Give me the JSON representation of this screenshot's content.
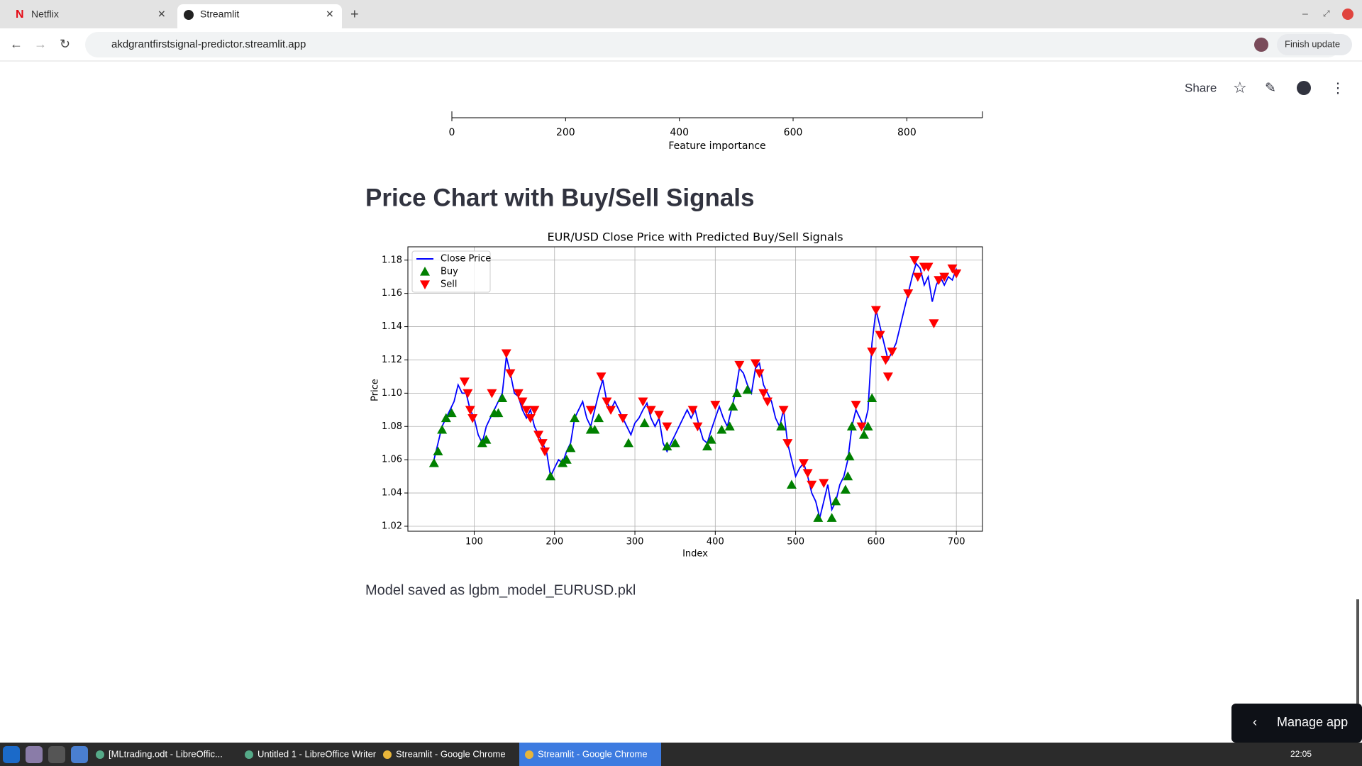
{
  "browser": {
    "tabs": [
      "Netflix",
      "Streamlit"
    ],
    "url": "akdgrantfirstsignal-predictor.streamlit.app",
    "update_button": "Finish update"
  },
  "app": {
    "share": "Share",
    "heading": "Price Chart with Buy/Sell Signals",
    "message": "Model saved as lgbm_model_EURUSD.pkl",
    "manage": "Manage app"
  },
  "feature_axis": {
    "xlabel": "Feature importance",
    "xlim": [
      0,
      933
    ],
    "xticks": [
      0,
      200,
      400,
      600,
      800
    ]
  },
  "chart_data": {
    "type": "line",
    "title": "EUR/USD Close Price with Predicted Buy/Sell Signals",
    "xlabel": "Index",
    "ylabel": "Price",
    "xlim": [
      17.5,
      732.5
    ],
    "ylim": [
      1.017,
      1.188
    ],
    "xticks": [
      100,
      200,
      300,
      400,
      500,
      600,
      700
    ],
    "yticks": [
      1.02,
      1.04,
      1.06,
      1.08,
      {
        "value": 1.1,
        "label": "1.10"
      },
      1.12,
      1.14,
      1.16,
      1.18
    ],
    "grid": true,
    "legend": "upper left",
    "series": [
      {
        "name": "Close Price",
        "type": "line",
        "color": "#0000ff",
        "x": [
          50,
          55,
          60,
          65,
          70,
          75,
          80,
          85,
          90,
          95,
          100,
          105,
          110,
          115,
          120,
          125,
          130,
          135,
          140,
          145,
          150,
          155,
          160,
          165,
          170,
          175,
          180,
          185,
          190,
          195,
          200,
          205,
          210,
          215,
          220,
          225,
          230,
          235,
          240,
          245,
          250,
          255,
          260,
          265,
          270,
          275,
          280,
          285,
          290,
          295,
          300,
          305,
          310,
          315,
          320,
          325,
          330,
          335,
          340,
          345,
          350,
          355,
          360,
          365,
          370,
          375,
          380,
          385,
          390,
          395,
          400,
          405,
          410,
          415,
          420,
          425,
          430,
          435,
          440,
          445,
          450,
          455,
          460,
          465,
          470,
          475,
          480,
          485,
          490,
          495,
          500,
          505,
          510,
          515,
          520,
          525,
          530,
          535,
          540,
          545,
          550,
          555,
          560,
          565,
          570,
          575,
          580,
          585,
          590,
          595,
          600,
          605,
          610,
          615,
          620,
          625,
          630,
          635,
          640,
          645,
          650,
          655,
          660,
          665,
          670,
          675,
          680,
          685,
          690,
          695,
          700
        ],
        "values": [
          1.06,
          1.07,
          1.08,
          1.085,
          1.09,
          1.095,
          1.105,
          1.1,
          1.1,
          1.09,
          1.085,
          1.075,
          1.07,
          1.08,
          1.085,
          1.09,
          1.095,
          1.1,
          1.122,
          1.112,
          1.1,
          1.098,
          1.09,
          1.085,
          1.09,
          1.08,
          1.075,
          1.07,
          1.065,
          1.05,
          1.055,
          1.06,
          1.058,
          1.065,
          1.07,
          1.085,
          1.09,
          1.095,
          1.085,
          1.08,
          1.09,
          1.1,
          1.108,
          1.095,
          1.09,
          1.095,
          1.09,
          1.085,
          1.08,
          1.075,
          1.082,
          1.085,
          1.09,
          1.094,
          1.085,
          1.08,
          1.085,
          1.07,
          1.065,
          1.07,
          1.075,
          1.08,
          1.085,
          1.09,
          1.085,
          1.09,
          1.08,
          1.072,
          1.07,
          1.078,
          1.085,
          1.092,
          1.085,
          1.08,
          1.09,
          1.1,
          1.115,
          1.112,
          1.105,
          1.1,
          1.115,
          1.118,
          1.105,
          1.1,
          1.095,
          1.085,
          1.08,
          1.09,
          1.07,
          1.06,
          1.05,
          1.055,
          1.058,
          1.05,
          1.04,
          1.035,
          1.025,
          1.035,
          1.045,
          1.03,
          1.035,
          1.045,
          1.05,
          1.06,
          1.08,
          1.09,
          1.085,
          1.08,
          1.09,
          1.13,
          1.15,
          1.14,
          1.13,
          1.12,
          1.125,
          1.13,
          1.14,
          1.15,
          1.16,
          1.17,
          1.178,
          1.175,
          1.165,
          1.17,
          1.155,
          1.165,
          1.17,
          1.165,
          1.17,
          1.168,
          1.175
        ]
      },
      {
        "name": "Buy",
        "type": "scatter",
        "marker": "triangle-up",
        "color": "#008000",
        "x": [
          50,
          55,
          60,
          65,
          72,
          110,
          115,
          125,
          130,
          135,
          195,
          210,
          215,
          220,
          225,
          245,
          250,
          255,
          292,
          312,
          340,
          350,
          390,
          395,
          408,
          418,
          422,
          427,
          440,
          482,
          495,
          528,
          545,
          550,
          562,
          565,
          567,
          570,
          585,
          590,
          595
        ],
        "values": [
          1.058,
          1.065,
          1.078,
          1.085,
          1.088,
          1.07,
          1.072,
          1.088,
          1.088,
          1.097,
          1.05,
          1.058,
          1.06,
          1.067,
          1.085,
          1.078,
          1.078,
          1.085,
          1.07,
          1.082,
          1.068,
          1.07,
          1.068,
          1.072,
          1.078,
          1.08,
          1.092,
          1.1,
          1.102,
          1.08,
          1.045,
          1.025,
          1.025,
          1.035,
          1.042,
          1.05,
          1.062,
          1.08,
          1.075,
          1.08,
          1.097
        ]
      },
      {
        "name": "Sell",
        "type": "scatter",
        "marker": "triangle-down",
        "color": "#ff0000",
        "x": [
          88,
          92,
          95,
          98,
          122,
          140,
          145,
          155,
          160,
          165,
          170,
          175,
          180,
          185,
          188,
          245,
          258,
          265,
          270,
          285,
          310,
          320,
          330,
          340,
          372,
          378,
          400,
          430,
          450,
          455,
          460,
          465,
          485,
          490,
          510,
          515,
          520,
          535,
          575,
          582,
          595,
          600,
          605,
          612,
          615,
          620,
          640,
          648,
          652,
          660,
          665,
          672,
          678,
          685,
          695,
          700
        ],
        "values": [
          1.107,
          1.1,
          1.09,
          1.085,
          1.1,
          1.124,
          1.112,
          1.1,
          1.095,
          1.09,
          1.085,
          1.09,
          1.075,
          1.07,
          1.065,
          1.09,
          1.11,
          1.095,
          1.09,
          1.085,
          1.095,
          1.09,
          1.087,
          1.08,
          1.09,
          1.08,
          1.093,
          1.117,
          1.118,
          1.112,
          1.1,
          1.095,
          1.09,
          1.07,
          1.058,
          1.052,
          1.045,
          1.046,
          1.093,
          1.08,
          1.125,
          1.15,
          1.135,
          1.12,
          1.11,
          1.125,
          1.16,
          1.18,
          1.17,
          1.176,
          1.176,
          1.142,
          1.168,
          1.17,
          1.175,
          1.172
        ]
      }
    ]
  },
  "taskbar": {
    "items": [
      "[MLtrading.odt - LibreOffic...",
      "Untitled 1 - LibreOffice Writer",
      "Streamlit - Google Chrome",
      "Streamlit - Google Chrome"
    ],
    "clock": "22:05"
  }
}
